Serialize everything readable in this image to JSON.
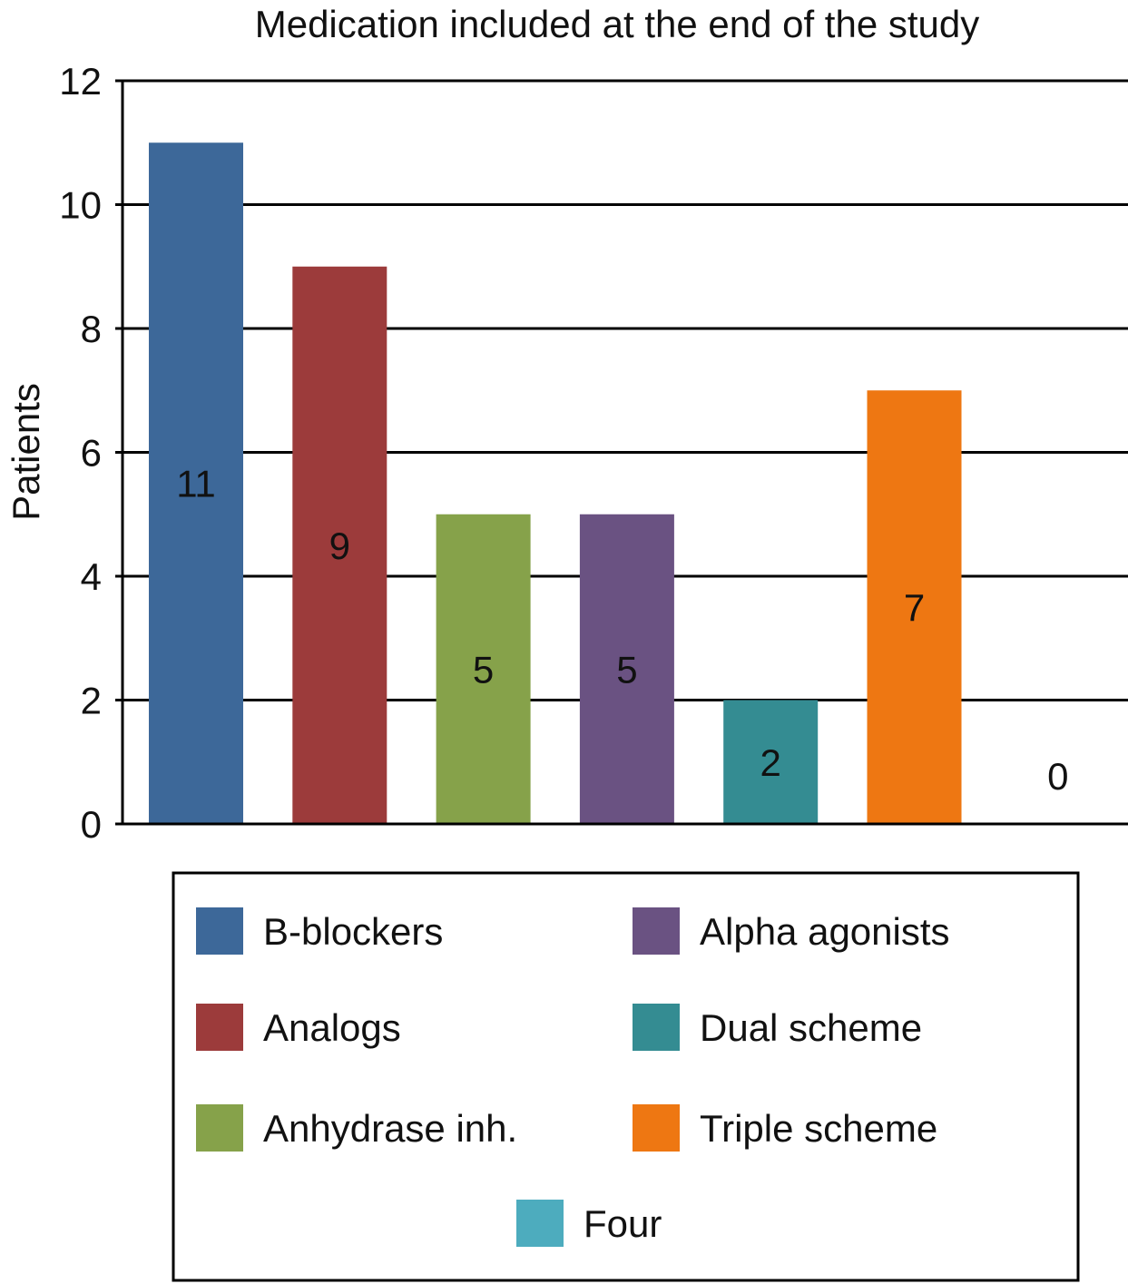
{
  "chart_data": {
    "type": "bar",
    "title": "Medication included at the end of the study",
    "xlabel": "",
    "ylabel": "Patients",
    "ylim": [
      0,
      12
    ],
    "yticks": [
      0,
      2,
      4,
      6,
      8,
      10,
      12
    ],
    "grid": true,
    "legend_position": "bottom",
    "categories": [
      "B-blockers",
      "Analogs",
      "Anhydrase inh.",
      "Alpha agonists",
      "Dual scheme",
      "Triple scheme",
      "Four"
    ],
    "values": [
      11,
      9,
      5,
      5,
      2,
      7,
      0
    ],
    "data_labels": [
      "11",
      "9",
      "5",
      "5",
      "2",
      "7",
      "0"
    ],
    "colors": [
      "#3d6899",
      "#9c3b3b",
      "#86a24a",
      "#6a5282",
      "#348c92",
      "#ee7712",
      "#4dacbe"
    ]
  }
}
